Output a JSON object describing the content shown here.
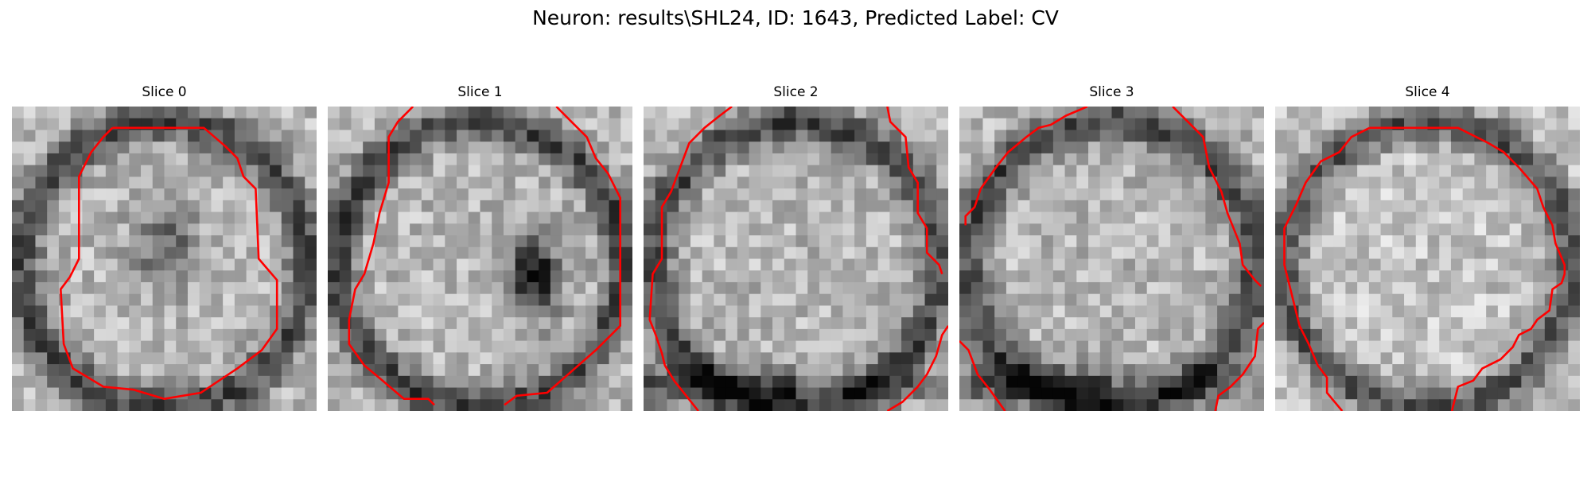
{
  "figure": {
    "title": "Neuron: results\\SHL24, ID: 1643, Predicted Label: CV"
  },
  "colors": {
    "contour": "#ff0000"
  },
  "grid": {
    "cols": 26,
    "rows": 26
  },
  "slices": [
    {
      "title": "Slice 0",
      "contour": [
        [
          [
            0.33,
            0.07
          ],
          [
            0.63,
            0.07
          ],
          [
            0.7,
            0.13
          ],
          [
            0.74,
            0.17
          ],
          [
            0.76,
            0.23
          ],
          [
            0.8,
            0.27
          ],
          [
            0.81,
            0.5
          ],
          [
            0.87,
            0.57
          ],
          [
            0.87,
            0.73
          ],
          [
            0.82,
            0.8
          ],
          [
            0.74,
            0.86
          ],
          [
            0.62,
            0.94
          ],
          [
            0.5,
            0.96
          ],
          [
            0.4,
            0.93
          ],
          [
            0.3,
            0.92
          ],
          [
            0.2,
            0.86
          ],
          [
            0.17,
            0.78
          ],
          [
            0.16,
            0.6
          ],
          [
            0.19,
            0.56
          ],
          [
            0.22,
            0.5
          ],
          [
            0.22,
            0.23
          ],
          [
            0.26,
            0.15
          ],
          [
            0.3,
            0.1
          ],
          [
            0.33,
            0.07
          ]
        ]
      ]
    },
    {
      "title": "Slice 1",
      "contour": [
        [
          [
            0.28,
            0.0
          ],
          [
            0.23,
            0.05
          ],
          [
            0.2,
            0.1
          ],
          [
            0.2,
            0.25
          ],
          [
            0.17,
            0.35
          ],
          [
            0.15,
            0.45
          ],
          [
            0.12,
            0.55
          ],
          [
            0.09,
            0.6
          ],
          [
            0.07,
            0.7
          ],
          [
            0.07,
            0.78
          ],
          [
            0.12,
            0.85
          ],
          [
            0.18,
            0.9
          ],
          [
            0.25,
            0.96
          ],
          [
            0.33,
            0.96
          ],
          [
            0.35,
            0.98
          ]
        ],
        [
          [
            0.58,
            0.98
          ],
          [
            0.62,
            0.95
          ],
          [
            0.72,
            0.94
          ],
          [
            0.8,
            0.87
          ],
          [
            0.88,
            0.8
          ],
          [
            0.93,
            0.75
          ],
          [
            0.96,
            0.72
          ],
          [
            0.96,
            0.3
          ],
          [
            0.92,
            0.22
          ],
          [
            0.88,
            0.17
          ],
          [
            0.85,
            0.1
          ],
          [
            0.8,
            0.05
          ],
          [
            0.75,
            0.0
          ]
        ]
      ]
    },
    {
      "title": "Slice 2",
      "contour": [
        [
          [
            0.29,
            0.0
          ],
          [
            0.25,
            0.03
          ],
          [
            0.2,
            0.07
          ],
          [
            0.15,
            0.12
          ],
          [
            0.12,
            0.2
          ],
          [
            0.09,
            0.28
          ],
          [
            0.06,
            0.33
          ],
          [
            0.06,
            0.5
          ],
          [
            0.03,
            0.55
          ],
          [
            0.02,
            0.7
          ],
          [
            0.04,
            0.75
          ],
          [
            0.06,
            0.81
          ],
          [
            0.07,
            0.85
          ],
          [
            0.1,
            0.9
          ],
          [
            0.14,
            0.95
          ],
          [
            0.18,
            1.0
          ]
        ],
        [
          [
            0.8,
            0.0
          ],
          [
            0.81,
            0.05
          ],
          [
            0.86,
            0.1
          ],
          [
            0.87,
            0.2
          ],
          [
            0.9,
            0.25
          ],
          [
            0.9,
            0.35
          ],
          [
            0.93,
            0.4
          ],
          [
            0.93,
            0.48
          ],
          [
            0.97,
            0.52
          ],
          [
            0.98,
            0.55
          ]
        ],
        [
          [
            1.0,
            0.72
          ],
          [
            0.98,
            0.75
          ],
          [
            0.96,
            0.82
          ],
          [
            0.93,
            0.88
          ],
          [
            0.9,
            0.92
          ],
          [
            0.85,
            0.97
          ],
          [
            0.8,
            1.0
          ]
        ]
      ]
    },
    {
      "title": "Slice 3",
      "contour": [
        [
          [
            0.42,
            0.0
          ],
          [
            0.35,
            0.03
          ],
          [
            0.3,
            0.06
          ],
          [
            0.26,
            0.07
          ],
          [
            0.22,
            0.1
          ],
          [
            0.16,
            0.15
          ],
          [
            0.12,
            0.2
          ],
          [
            0.07,
            0.27
          ],
          [
            0.05,
            0.33
          ],
          [
            0.02,
            0.36
          ],
          [
            0.02,
            0.39
          ]
        ],
        [
          [
            0.7,
            0.0
          ],
          [
            0.75,
            0.05
          ],
          [
            0.8,
            0.1
          ],
          [
            0.82,
            0.2
          ],
          [
            0.86,
            0.28
          ],
          [
            0.88,
            0.35
          ],
          [
            0.9,
            0.4
          ],
          [
            0.92,
            0.45
          ],
          [
            0.93,
            0.52
          ],
          [
            0.97,
            0.57
          ],
          [
            0.99,
            0.59
          ]
        ],
        [
          [
            1.0,
            0.71
          ],
          [
            0.98,
            0.73
          ],
          [
            0.97,
            0.82
          ],
          [
            0.93,
            0.88
          ],
          [
            0.89,
            0.92
          ],
          [
            0.85,
            0.95
          ],
          [
            0.84,
            1.0
          ]
        ],
        [
          [
            0.0,
            0.77
          ],
          [
            0.03,
            0.8
          ],
          [
            0.06,
            0.88
          ],
          [
            0.1,
            0.93
          ],
          [
            0.15,
            1.0
          ]
        ]
      ]
    },
    {
      "title": "Slice 4",
      "contour": [
        [
          [
            0.31,
            0.07
          ],
          [
            0.6,
            0.07
          ],
          [
            0.7,
            0.12
          ],
          [
            0.75,
            0.15
          ],
          [
            0.8,
            0.2
          ],
          [
            0.86,
            0.27
          ],
          [
            0.88,
            0.33
          ],
          [
            0.91,
            0.39
          ],
          [
            0.92,
            0.45
          ],
          [
            0.95,
            0.52
          ],
          [
            0.95,
            0.55
          ],
          [
            0.94,
            0.58
          ],
          [
            0.91,
            0.6
          ],
          [
            0.9,
            0.67
          ],
          [
            0.86,
            0.7
          ],
          [
            0.84,
            0.73
          ],
          [
            0.8,
            0.75
          ],
          [
            0.78,
            0.79
          ],
          [
            0.74,
            0.83
          ],
          [
            0.68,
            0.86
          ],
          [
            0.65,
            0.9
          ],
          [
            0.6,
            0.92
          ],
          [
            0.58,
            1.0
          ]
        ],
        [
          [
            0.22,
            1.0
          ],
          [
            0.17,
            0.94
          ],
          [
            0.17,
            0.89
          ],
          [
            0.14,
            0.85
          ],
          [
            0.11,
            0.78
          ],
          [
            0.08,
            0.72
          ],
          [
            0.05,
            0.6
          ],
          [
            0.03,
            0.52
          ],
          [
            0.03,
            0.4
          ],
          [
            0.07,
            0.32
          ],
          [
            0.1,
            0.25
          ],
          [
            0.15,
            0.18
          ],
          [
            0.21,
            0.15
          ],
          [
            0.25,
            0.1
          ],
          [
            0.31,
            0.07
          ]
        ]
      ]
    }
  ]
}
